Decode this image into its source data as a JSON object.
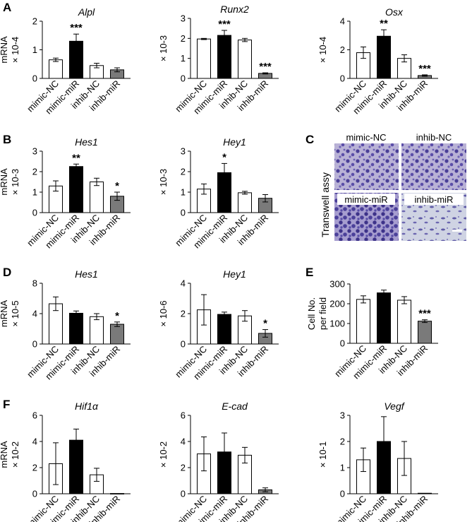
{
  "figure": {
    "panel_letters": [
      "A",
      "B",
      "C",
      "D",
      "E",
      "F"
    ],
    "colors": {
      "open": "#ffffff",
      "filled": "#000000",
      "gray": "#7a7a7a",
      "stroke": "#000000"
    }
  },
  "micrographs": {
    "ylabel": "Transwell assy",
    "labels": [
      "mimic-NC",
      "inhib-NC",
      "mimic-miR",
      "inhib-miR"
    ],
    "scale_bar": "white scale bar"
  },
  "chart_data": [
    {
      "id": "A1",
      "panel": "A",
      "type": "bar",
      "title": "Alpl",
      "ylabel_lines": [
        "mRNA",
        "× 10-4"
      ],
      "ylim": [
        0,
        2
      ],
      "yticks": [
        "0",
        "1",
        "2"
      ],
      "categories": [
        "mimic-NC",
        "mimic-miR",
        "inhib-NC",
        "inhib-miR"
      ],
      "values": [
        0.65,
        1.3,
        0.45,
        0.3
      ],
      "errors": [
        0.06,
        0.25,
        0.08,
        0.07
      ],
      "fills": [
        "open",
        "filled",
        "open",
        "gray"
      ],
      "stars": [
        "",
        "***",
        "",
        ""
      ]
    },
    {
      "id": "A2",
      "panel": "A",
      "type": "bar",
      "title": "Runx2",
      "ylabel_lines": [
        "× 10-3"
      ],
      "ylim": [
        0,
        3
      ],
      "yticks": [
        "0",
        "1",
        "2",
        "3"
      ],
      "categories": [
        "mimic-NC",
        "mimic-miR",
        "inhib-NC",
        "inhib-miR"
      ],
      "values": [
        1.97,
        2.15,
        1.92,
        0.25
      ],
      "errors": [
        0.03,
        0.25,
        0.08,
        0.03
      ],
      "fills": [
        "open",
        "filled",
        "open",
        "gray"
      ],
      "stars": [
        "",
        "***",
        "",
        "***"
      ]
    },
    {
      "id": "A3",
      "panel": "A",
      "type": "bar",
      "title": "Osx",
      "ylabel_lines": [
        "× 10-4"
      ],
      "ylim": [
        0,
        4
      ],
      "yticks": [
        "0",
        "2",
        "4"
      ],
      "categories": [
        "mimic-NC",
        "mimic-miR",
        "inhib-NC",
        "inhib-miR"
      ],
      "values": [
        1.8,
        2.95,
        1.4,
        0.2
      ],
      "errors": [
        0.4,
        0.45,
        0.25,
        0.05
      ],
      "fills": [
        "open",
        "filled",
        "open",
        "gray"
      ],
      "stars": [
        "",
        "**",
        "",
        "***"
      ]
    },
    {
      "id": "B1",
      "panel": "B",
      "type": "bar",
      "title": "Hes1",
      "ylabel_lines": [
        "mRNA",
        "× 10-3"
      ],
      "ylim": [
        0,
        3
      ],
      "yticks": [
        "0",
        "1",
        "2",
        "3"
      ],
      "categories": [
        "mimic-NC",
        "mimic-miR",
        "inhib-NC",
        "inhib-miR"
      ],
      "values": [
        1.3,
        2.25,
        1.5,
        0.8
      ],
      "errors": [
        0.25,
        0.12,
        0.18,
        0.2
      ],
      "fills": [
        "open",
        "filled",
        "open",
        "gray"
      ],
      "stars": [
        "",
        "**",
        "",
        "*"
      ]
    },
    {
      "id": "B2",
      "panel": "B",
      "type": "bar",
      "title": "Hey1",
      "ylabel_lines": [
        "× 10-3"
      ],
      "ylim": [
        0,
        3
      ],
      "yticks": [
        "0",
        "1",
        "2",
        "3"
      ],
      "categories": [
        "mimic-NC",
        "mimic-miR",
        "inhib-NC",
        "inhib-miR"
      ],
      "values": [
        1.15,
        1.95,
        0.97,
        0.7
      ],
      "errors": [
        0.25,
        0.45,
        0.07,
        0.18
      ],
      "fills": [
        "open",
        "filled",
        "open",
        "gray"
      ],
      "stars": [
        "",
        "*",
        "",
        ""
      ]
    },
    {
      "id": "D1",
      "panel": "D",
      "type": "bar",
      "title": "Hes1",
      "ylabel_lines": [
        "mRNA",
        "× 10-5"
      ],
      "ylim": [
        0,
        8
      ],
      "yticks": [
        "0",
        "4",
        "8"
      ],
      "categories": [
        "mimic-NC",
        "mimic-miR",
        "inhib-NC",
        "inhib-miR"
      ],
      "values": [
        5.3,
        4.05,
        3.6,
        2.6
      ],
      "errors": [
        0.9,
        0.3,
        0.4,
        0.3
      ],
      "fills": [
        "open",
        "filled",
        "open",
        "gray"
      ],
      "stars": [
        "",
        "",
        "",
        "*"
      ]
    },
    {
      "id": "D2",
      "panel": "D",
      "type": "bar",
      "title": "Hey1",
      "ylabel_lines": [
        "× 10-6"
      ],
      "ylim": [
        0,
        4
      ],
      "yticks": [
        "0",
        "2",
        "4"
      ],
      "categories": [
        "mimic-NC",
        "mimic-miR",
        "inhib-NC",
        "inhib-miR"
      ],
      "values": [
        2.25,
        1.95,
        1.85,
        0.7
      ],
      "errors": [
        1.0,
        0.15,
        0.35,
        0.25
      ],
      "fills": [
        "open",
        "filled",
        "open",
        "gray"
      ],
      "stars": [
        "",
        "",
        "",
        "*"
      ]
    },
    {
      "id": "E1",
      "panel": "E",
      "type": "bar",
      "title": "",
      "ylabel_lines": [
        "Cell No.",
        "per field"
      ],
      "ylim": [
        0,
        300
      ],
      "yticks": [
        "0",
        "100",
        "200",
        "300"
      ],
      "categories": [
        "mimic-NC",
        "mimic-miR",
        "inhib-NC",
        "inhib-miR"
      ],
      "values": [
        222,
        255,
        218,
        112
      ],
      "errors": [
        18,
        14,
        18,
        7
      ],
      "fills": [
        "open",
        "filled",
        "open",
        "gray"
      ],
      "stars": [
        "",
        "",
        "",
        "***"
      ]
    },
    {
      "id": "F1",
      "panel": "F",
      "type": "bar",
      "title": "Hif1α",
      "ylabel_lines": [
        "mRNA",
        "× 10-2"
      ],
      "ylim": [
        0,
        6
      ],
      "yticks": [
        "0",
        "2",
        "4",
        "6"
      ],
      "categories": [
        "mimic-NC",
        "mimic-miR",
        "inhib-NC",
        "inhib-miR"
      ],
      "values": [
        2.3,
        4.1,
        1.45,
        0.02
      ],
      "errors": [
        1.6,
        0.85,
        0.5,
        0.0
      ],
      "fills": [
        "open",
        "filled",
        "open",
        "gray"
      ],
      "stars": [
        "",
        "",
        "",
        ""
      ]
    },
    {
      "id": "F2",
      "panel": "F",
      "type": "bar",
      "title": "E-cad",
      "ylabel_lines": [
        "× 10-2"
      ],
      "ylim": [
        0,
        6
      ],
      "yticks": [
        "0",
        "2",
        "4",
        "6"
      ],
      "categories": [
        "mimic-NC",
        "mimic-miR",
        "inhib-NC",
        "inhib-miR"
      ],
      "values": [
        3.05,
        3.2,
        2.95,
        0.3
      ],
      "errors": [
        1.3,
        1.45,
        0.6,
        0.15
      ],
      "fills": [
        "open",
        "filled",
        "open",
        "gray"
      ],
      "stars": [
        "",
        "",
        "",
        ""
      ]
    },
    {
      "id": "F3",
      "panel": "F",
      "type": "bar",
      "title": "Vegf",
      "ylabel_lines": [
        "× 10-1"
      ],
      "ylim": [
        0,
        3
      ],
      "yticks": [
        "0",
        "1",
        "2",
        "3"
      ],
      "categories": [
        "mimic-NC",
        "mimic-miR",
        "inhib-NC",
        "inhib-miR"
      ],
      "values": [
        1.3,
        2.0,
        1.35,
        0.02
      ],
      "errors": [
        0.45,
        0.95,
        0.65,
        0.0
      ],
      "fills": [
        "open",
        "filled",
        "open",
        "gray"
      ],
      "stars": [
        "",
        "",
        "",
        ""
      ]
    }
  ]
}
